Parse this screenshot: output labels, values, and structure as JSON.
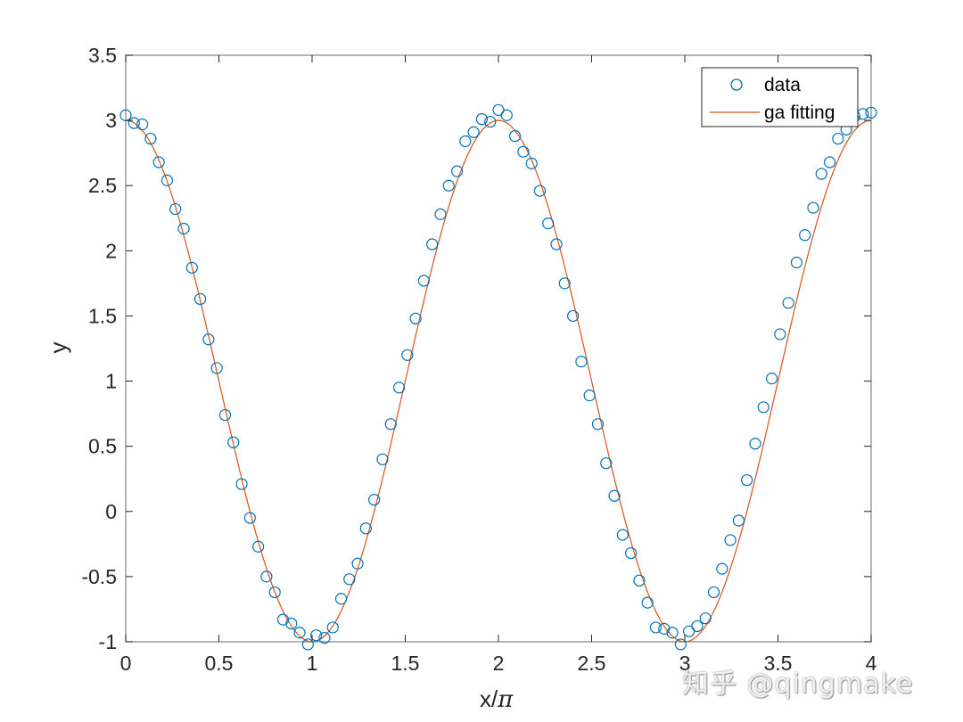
{
  "chart_data": {
    "type": "scatter+line",
    "title": "",
    "xlabel": "x/π",
    "ylabel": "y",
    "xlim": [
      0,
      4
    ],
    "ylim": [
      -1,
      3.5
    ],
    "xticks": [
      0,
      0.5,
      1,
      1.5,
      2,
      2.5,
      3,
      3.5,
      4
    ],
    "xtick_labels": [
      "0",
      "0.5",
      "1",
      "1.5",
      "2",
      "2.5",
      "3",
      "3.5",
      "4"
    ],
    "yticks": [
      -1,
      -0.5,
      0,
      0.5,
      1,
      1.5,
      2,
      2.5,
      3,
      3.5
    ],
    "ytick_labels": [
      "-1",
      "-0.5",
      "0",
      "0.5",
      "1",
      "1.5",
      "2",
      "2.5",
      "3",
      "3.5"
    ],
    "grid": false,
    "legend_position": "northeast",
    "series": [
      {
        "name": "data",
        "type": "scatter",
        "marker": "circle-open",
        "color": "#0072BD",
        "x": [
          0,
          0.0444,
          0.0889,
          0.1333,
          0.1778,
          0.2222,
          0.2667,
          0.3111,
          0.3556,
          0.4,
          0.4444,
          0.4889,
          0.5333,
          0.5778,
          0.6222,
          0.6667,
          0.7111,
          0.7556,
          0.8,
          0.8444,
          0.8889,
          0.9333,
          0.9778,
          1.0222,
          1.0667,
          1.1111,
          1.1556,
          1.2,
          1.2444,
          1.2889,
          1.3333,
          1.3778,
          1.4222,
          1.4667,
          1.5111,
          1.5556,
          1.6,
          1.6444,
          1.6889,
          1.7333,
          1.7778,
          1.8222,
          1.8667,
          1.9111,
          1.9556,
          2.0,
          2.0444,
          2.0889,
          2.1333,
          2.1778,
          2.2222,
          2.2667,
          2.3111,
          2.3556,
          2.4,
          2.4444,
          2.4889,
          2.5333,
          2.5778,
          2.6222,
          2.6667,
          2.7111,
          2.7556,
          2.8,
          2.8444,
          2.8889,
          2.9333,
          2.9778,
          3.0222,
          3.0667,
          3.1111,
          3.1556,
          3.2,
          3.2444,
          3.2889,
          3.3333,
          3.3778,
          3.4222,
          3.4667,
          3.5111,
          3.5556,
          3.6,
          3.6444,
          3.6889,
          3.7333,
          3.7778,
          3.8222,
          3.8667,
          3.9111,
          3.9556,
          4.0
        ],
        "y": [
          3.04,
          2.98,
          2.97,
          2.86,
          2.68,
          2.54,
          2.32,
          2.17,
          1.87,
          1.63,
          1.32,
          1.1,
          0.74,
          0.53,
          0.21,
          -0.05,
          -0.27,
          -0.5,
          -0.62,
          -0.83,
          -0.86,
          -0.93,
          -1.02,
          -0.95,
          -0.97,
          -0.89,
          -0.67,
          -0.52,
          -0.4,
          -0.13,
          0.09,
          0.4,
          0.67,
          0.95,
          1.2,
          1.48,
          1.77,
          2.05,
          2.28,
          2.5,
          2.61,
          2.84,
          2.91,
          3.01,
          2.99,
          3.08,
          3.04,
          2.88,
          2.76,
          2.67,
          2.46,
          2.21,
          2.05,
          1.75,
          1.5,
          1.15,
          0.89,
          0.67,
          0.37,
          0.12,
          -0.18,
          -0.32,
          -0.53,
          -0.7,
          -0.89,
          -0.9,
          -0.93,
          -1.02,
          -0.92,
          -0.88,
          -0.82,
          -0.62,
          -0.44,
          -0.22,
          -0.07,
          0.24,
          0.52,
          0.8,
          1.02,
          1.36,
          1.6,
          1.91,
          2.12,
          2.33,
          2.59,
          2.68,
          2.86,
          2.93,
          3.03,
          3.05,
          3.06
        ]
      },
      {
        "name": "ga fitting",
        "type": "line",
        "color": "#D95319",
        "formula": "y = 1 + 2*cos(pi*x)",
        "params": {
          "offset": 1.0,
          "amplitude": 2.0,
          "frequency": 1.0
        }
      }
    ]
  },
  "legend": {
    "items": [
      {
        "label": "data",
        "symbol": "circle"
      },
      {
        "label": "ga fitting",
        "symbol": "line"
      }
    ]
  },
  "axes": {
    "xlabel_main": "x/",
    "xlabel_pi": "π",
    "ylabel": "y"
  },
  "watermark": "知乎 @qingmake",
  "colors": {
    "data": "#0072BD",
    "fit": "#D95319",
    "axis": "#262626",
    "box": "#8c8c8c"
  }
}
